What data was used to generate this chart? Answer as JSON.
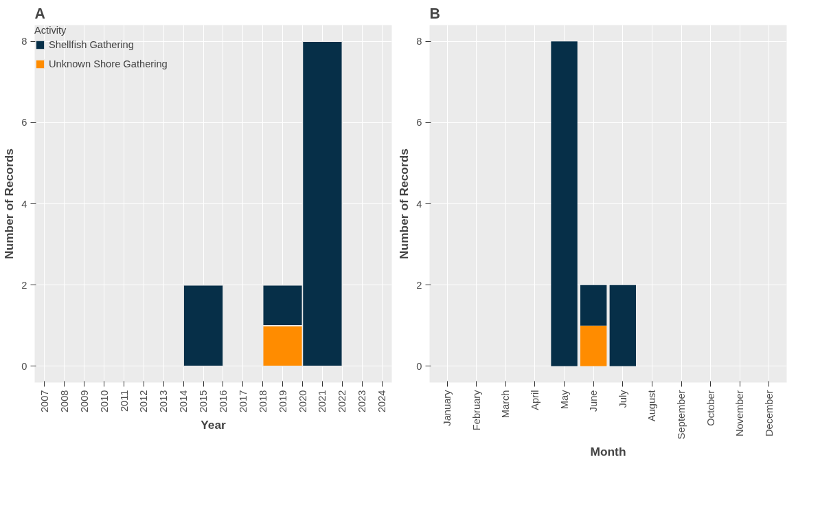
{
  "chart_data": [
    {
      "type": "bar",
      "title": "A",
      "xlabel": "Year",
      "ylabel": "Number of Records",
      "legend_title": "Activity",
      "legend": "top",
      "stacked": true,
      "grid": true,
      "x": [
        2015,
        2019,
        2021
      ],
      "series": [
        {
          "name": "Unknown Shore Gathering",
          "color": "#ff8c00",
          "values": [
            0,
            1,
            0
          ]
        },
        {
          "name": "Shellfish Gathering",
          "color": "#062f48",
          "values": [
            2,
            1,
            8
          ]
        }
      ],
      "xlim": [
        2006.5,
        2024.5
      ],
      "xticks": [
        2007,
        2008,
        2009,
        2010,
        2011,
        2012,
        2013,
        2014,
        2015,
        2016,
        2017,
        2018,
        2019,
        2020,
        2021,
        2022,
        2023,
        2024
      ],
      "ylim": [
        -0.4,
        8.4
      ],
      "yticks": [
        0,
        2,
        4,
        6,
        8
      ]
    },
    {
      "type": "bar",
      "title": "B",
      "xlabel": "Month",
      "ylabel": "Number of Records",
      "stacked": true,
      "grid": true,
      "categories": [
        "January",
        "February",
        "March",
        "April",
        "May",
        "June",
        "July",
        "August",
        "September",
        "October",
        "November",
        "December"
      ],
      "series": [
        {
          "color": "#ff8c00",
          "values": [
            0,
            0,
            0,
            0,
            0,
            1,
            0,
            0,
            0,
            0,
            0,
            0
          ]
        },
        {
          "color": "#062f48",
          "values": [
            0,
            0,
            0,
            0,
            8,
            1,
            2,
            0,
            0,
            0,
            0,
            0
          ]
        }
      ],
      "ylim": [
        -0.4,
        8.4
      ],
      "yticks": [
        0,
        2,
        4,
        6,
        8
      ]
    }
  ]
}
